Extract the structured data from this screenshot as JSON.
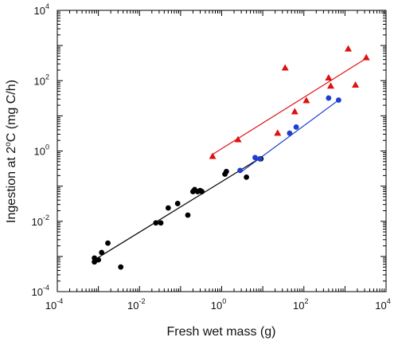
{
  "chart_data": {
    "type": "scatter",
    "xlabel": "Fresh wet mass (g)",
    "ylabel_main": "Ingestion at 2",
    "ylabel_sup": "o",
    "ylabel_tail": "C (mg C/h)",
    "x_scale": "log",
    "y_scale": "log",
    "xlim": [
      0.0001,
      10000
    ],
    "ylim": [
      0.0001,
      10000
    ],
    "x_ticks": [
      {
        "base": "10",
        "exp": "-4",
        "value": 0.0001
      },
      {
        "base": "10",
        "exp": "-2",
        "value": 0.01
      },
      {
        "base": "10",
        "exp": "0",
        "value": 1
      },
      {
        "base": "10",
        "exp": "2",
        "value": 100
      },
      {
        "base": "10",
        "exp": "4",
        "value": 10000
      }
    ],
    "y_ticks": [
      {
        "base": "10",
        "exp": "-4",
        "value": 0.0001
      },
      {
        "base": "10",
        "exp": "-2",
        "value": 0.01
      },
      {
        "base": "10",
        "exp": "0",
        "value": 1
      },
      {
        "base": "10",
        "exp": "2",
        "value": 100
      },
      {
        "base": "10",
        "exp": "4",
        "value": 10000
      }
    ],
    "grid": false,
    "legend": "none",
    "series": [
      {
        "color": "#000000",
        "marker": "circle",
        "points": [
          [
            0.0008,
            0.0009
          ],
          [
            0.0008,
            0.0007
          ],
          [
            0.001,
            0.0008
          ],
          [
            0.0012,
            0.0013
          ],
          [
            0.0017,
            0.0024
          ],
          [
            0.0035,
            0.0005
          ],
          [
            0.025,
            0.009
          ],
          [
            0.033,
            0.009
          ],
          [
            0.05,
            0.024
          ],
          [
            0.085,
            0.032
          ],
          [
            0.15,
            0.015
          ],
          [
            0.2,
            0.07
          ],
          [
            0.22,
            0.08
          ],
          [
            0.26,
            0.07
          ],
          [
            0.3,
            0.075
          ],
          [
            0.33,
            0.07
          ],
          [
            1.2,
            0.22
          ],
          [
            1.3,
            0.26
          ],
          [
            4,
            0.18
          ],
          [
            9,
            0.6
          ]
        ],
        "fit": {
          "x": [
            0.0008,
            9
          ],
          "y": [
            0.0008,
            0.65
          ]
        }
      },
      {
        "color": "#1f3fd0",
        "marker": "circle",
        "points": [
          [
            2.8,
            0.28
          ],
          [
            6.5,
            0.65
          ],
          [
            8.5,
            0.6
          ],
          [
            45,
            3.2
          ],
          [
            65,
            4.8
          ],
          [
            400,
            32
          ],
          [
            700,
            28
          ]
        ],
        "fit": {
          "x": [
            2.8,
            700
          ],
          "y": [
            0.24,
            28
          ]
        }
      },
      {
        "color": "#e01010",
        "marker": "triangle",
        "points": [
          [
            0.6,
            0.7
          ],
          [
            2.5,
            2.1
          ],
          [
            23,
            3.2
          ],
          [
            35,
            230
          ],
          [
            60,
            13
          ],
          [
            115,
            27
          ],
          [
            400,
            120
          ],
          [
            450,
            70
          ],
          [
            1200,
            800
          ],
          [
            1800,
            75
          ],
          [
            3300,
            450
          ]
        ],
        "fit": {
          "x": [
            0.6,
            3300
          ],
          "y": [
            0.8,
            430
          ]
        }
      }
    ]
  }
}
